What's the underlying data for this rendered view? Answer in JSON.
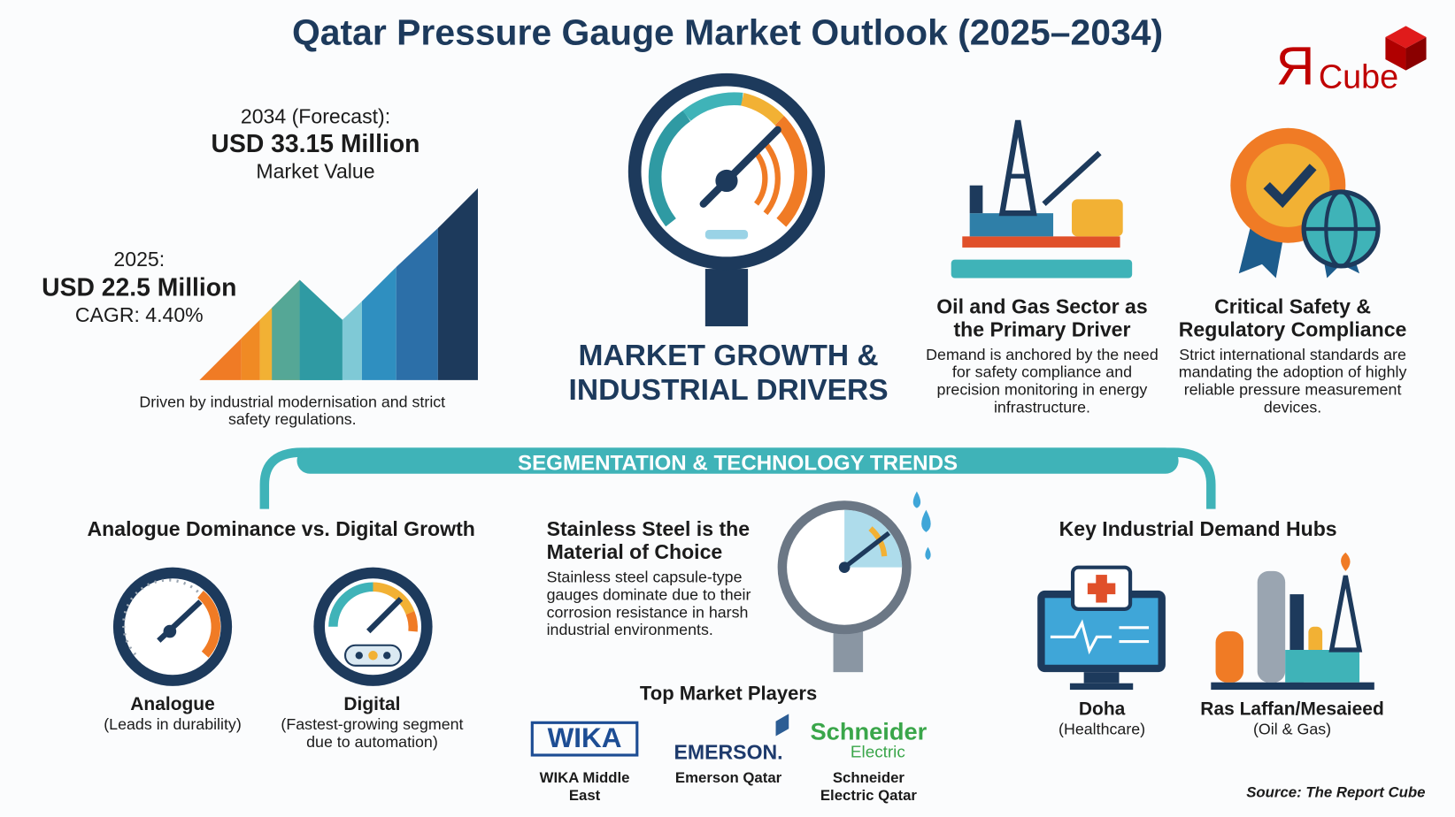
{
  "title": "Qatar Pressure Gauge Market Outlook (2025–2034)",
  "logo": {
    "text_r": "Я",
    "text_cube": "Cube",
    "color": "#c00000"
  },
  "market": {
    "forecast_label": "2034 (Forecast):",
    "forecast_value": "USD 33.15 Million",
    "forecast_sub": "Market Value",
    "base_label": "2025:",
    "base_value": "USD 22.5 Million",
    "cagr": "CAGR: 4.40%",
    "caption": "Driven by industrial modernisation and strict safety regulations."
  },
  "center_heading": {
    "line1": "MARKET GROWTH &",
    "line2": "INDUSTRIAL DRIVERS"
  },
  "drivers": [
    {
      "title": "Oil and Gas Sector as the Primary Driver",
      "desc": "Demand is anchored by the need for safety compliance and precision monitoring in energy infrastructure.",
      "icon": "oil-rig-icon"
    },
    {
      "title": "Critical Safety & Regulatory Compliance",
      "desc": "Strict international standards are mandating the adoption of highly reliable pressure measurement devices.",
      "icon": "certified-badge-globe-icon"
    }
  ],
  "banner": "SEGMENTATION & TECHNOLOGY TRENDS",
  "segments": {
    "heading": "Analogue Dominance vs. Digital Growth",
    "analogue": {
      "label": "Analogue",
      "sub": "(Leads in durability)"
    },
    "digital": {
      "label": "Digital",
      "sub": "(Fastest-growing segment due to automation)"
    }
  },
  "material": {
    "title": "Stainless Steel is the Material of Choice",
    "desc": "Stainless steel capsule-type gauges dominate due to their corrosion resistance in harsh industrial environments."
  },
  "players": {
    "heading": "Top Market Players",
    "items": [
      {
        "logo": "WIKA",
        "name": "WIKA Middle East"
      },
      {
        "logo": "EMERSON.",
        "name": "Emerson Qatar"
      },
      {
        "logo": "Schneider",
        "logo_sub": "Electric",
        "name": "Schneider Electric Qatar"
      }
    ]
  },
  "hubs": {
    "heading": "Key Industrial Demand Hubs",
    "items": [
      {
        "label": "Doha",
        "sub": "(Healthcare)"
      },
      {
        "label": "Ras Laffan/Mesaieed",
        "sub": "(Oil & Gas)"
      }
    ]
  },
  "source": "Source: The Report Cube",
  "colors": {
    "navy": "#1d3a5c",
    "teal": "#3fb3b8",
    "orange": "#f08a24",
    "red": "#c00000"
  }
}
